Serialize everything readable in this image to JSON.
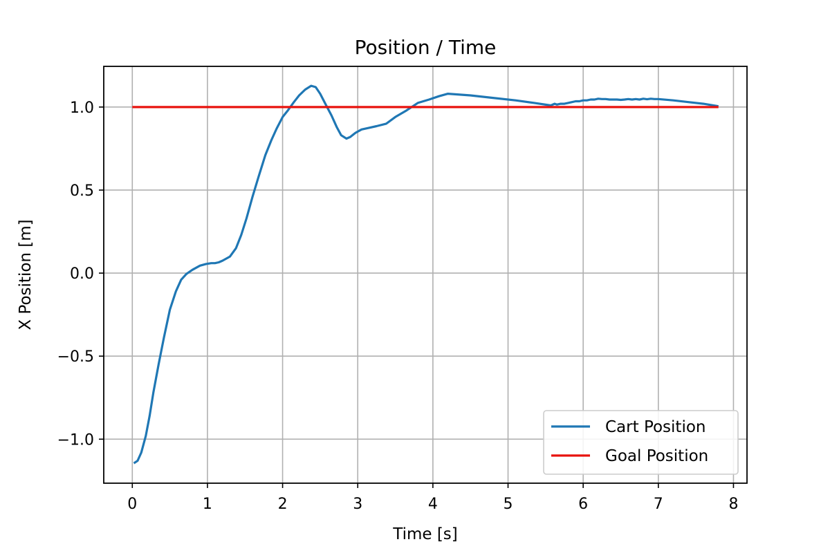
{
  "chart_data": {
    "type": "line",
    "title": "Position / Time",
    "xlabel": "Time [s]",
    "ylabel": "X Position [m]",
    "xlim": [
      -0.38,
      8.18
    ],
    "ylim": [
      -1.265,
      1.245
    ],
    "xticks": [
      0,
      1,
      2,
      3,
      4,
      5,
      6,
      7,
      8
    ],
    "xtick_labels": [
      "0",
      "1",
      "2",
      "3",
      "4",
      "5",
      "6",
      "7",
      "8"
    ],
    "yticks": [
      -1.0,
      -0.5,
      0.0,
      0.5,
      1.0
    ],
    "ytick_labels": [
      "−1.0",
      "−0.5",
      "0.0",
      "0.5",
      "1.0"
    ],
    "grid": true,
    "legend": "bottom-right",
    "series": [
      {
        "name": "Cart Position",
        "color": "#1f77b4",
        "x": [
          0.02,
          0.07,
          0.12,
          0.18,
          0.23,
          0.28,
          0.35,
          0.42,
          0.5,
          0.58,
          0.65,
          0.72,
          0.8,
          0.9,
          0.98,
          1.05,
          1.1,
          1.15,
          1.2,
          1.3,
          1.38,
          1.45,
          1.52,
          1.6,
          1.68,
          1.77,
          1.85,
          1.92,
          2.0,
          2.07,
          2.15,
          2.22,
          2.3,
          2.38,
          2.44,
          2.5,
          2.58,
          2.65,
          2.72,
          2.78,
          2.85,
          2.9,
          2.97,
          3.05,
          3.15,
          3.25,
          3.38,
          3.5,
          3.65,
          3.8,
          3.95,
          4.08,
          4.2,
          4.5,
          4.8,
          5.1,
          5.35,
          5.57,
          5.62,
          5.65,
          5.7,
          5.75,
          5.8,
          5.85,
          5.9,
          5.95,
          6.0,
          6.05,
          6.1,
          6.15,
          6.2,
          6.25,
          6.3,
          6.35,
          6.4,
          6.45,
          6.5,
          6.55,
          6.6,
          6.65,
          6.7,
          6.75,
          6.8,
          6.85,
          6.9,
          6.95,
          7.0,
          7.2,
          7.4,
          7.6,
          7.8
        ],
        "y": [
          -1.145,
          -1.13,
          -1.08,
          -0.98,
          -0.86,
          -0.72,
          -0.55,
          -0.39,
          -0.22,
          -0.11,
          -0.04,
          -0.005,
          0.02,
          0.045,
          0.055,
          0.06,
          0.06,
          0.065,
          0.075,
          0.1,
          0.15,
          0.23,
          0.33,
          0.46,
          0.58,
          0.71,
          0.8,
          0.87,
          0.94,
          0.98,
          1.03,
          1.07,
          1.105,
          1.128,
          1.12,
          1.08,
          1.01,
          0.95,
          0.88,
          0.83,
          0.81,
          0.82,
          0.845,
          0.865,
          0.875,
          0.885,
          0.9,
          0.94,
          0.98,
          1.025,
          1.045,
          1.065,
          1.08,
          1.07,
          1.055,
          1.04,
          1.025,
          1.01,
          1.02,
          1.015,
          1.02,
          1.02,
          1.025,
          1.03,
          1.035,
          1.035,
          1.04,
          1.04,
          1.045,
          1.045,
          1.05,
          1.048,
          1.048,
          1.045,
          1.045,
          1.045,
          1.043,
          1.045,
          1.048,
          1.045,
          1.048,
          1.045,
          1.05,
          1.047,
          1.05,
          1.048,
          1.048,
          1.04,
          1.03,
          1.02,
          1.005
        ]
      },
      {
        "name": "Goal Position",
        "color": "#e8130e",
        "x": [
          0.0,
          7.8
        ],
        "y": [
          1.0,
          1.0
        ]
      }
    ]
  }
}
